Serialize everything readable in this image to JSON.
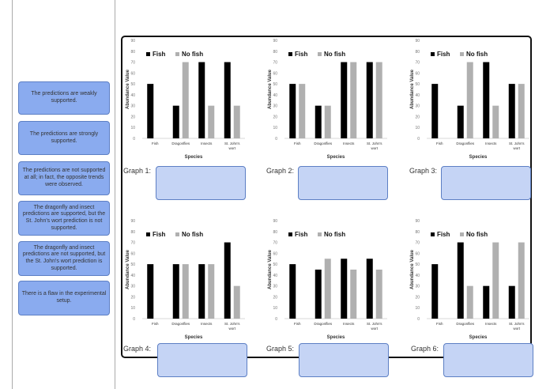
{
  "options": [
    {
      "text": "The predictions are weakly supported."
    },
    {
      "text": "The predictions are strongly supported."
    },
    {
      "text": "The predictions are not supported at all; in fact, the opposite trends were observed."
    },
    {
      "text": "The dragonfly and insect predictions are supported, but the St. John's wort prediction is not supported."
    },
    {
      "text": "The dragonfly and insect predictions are not supported, but the St. John's wort prediction is supported."
    },
    {
      "text": "There is a flaw in the experimental setup."
    }
  ],
  "graph_labels": [
    "Graph 1:",
    "Graph 2:",
    "Graph 3:",
    "Graph 4:",
    "Graph 5:",
    "Graph 6:"
  ],
  "chart_data": [
    {
      "type": "bar",
      "title": "Graph 1",
      "categories": [
        "Fish",
        "Dragonflies",
        "Insects",
        "St. John's wort"
      ],
      "series": [
        {
          "name": "Fish",
          "values": [
            50,
            30,
            70,
            70
          ]
        },
        {
          "name": "No fish",
          "values": [
            0,
            70,
            30,
            30
          ]
        }
      ],
      "xlabel": "Species",
      "ylabel": "Abundance Value",
      "ylim": [
        0,
        90
      ]
    },
    {
      "type": "bar",
      "title": "Graph 2",
      "categories": [
        "Fish",
        "Dragonflies",
        "Insects",
        "St. John's wort"
      ],
      "series": [
        {
          "name": "Fish",
          "values": [
            50,
            30,
            70,
            70
          ]
        },
        {
          "name": "No fish",
          "values": [
            50,
            30,
            70,
            70
          ]
        }
      ],
      "xlabel": "Species",
      "ylabel": "Abundance Value",
      "ylim": [
        0,
        90
      ]
    },
    {
      "type": "bar",
      "title": "Graph 3",
      "categories": [
        "Fish",
        "Dragonflies",
        "Insects",
        "St. John's wort"
      ],
      "series": [
        {
          "name": "Fish",
          "values": [
            50,
            30,
            70,
            50
          ]
        },
        {
          "name": "No fish",
          "values": [
            0,
            70,
            30,
            50
          ]
        }
      ],
      "xlabel": "Species",
      "ylabel": "Abundance Value",
      "ylim": [
        0,
        90
      ]
    },
    {
      "type": "bar",
      "title": "Graph 4",
      "categories": [
        "Fish",
        "Dragonflies",
        "Insects",
        "St. John's wort"
      ],
      "series": [
        {
          "name": "Fish",
          "values": [
            50,
            50,
            50,
            70
          ]
        },
        {
          "name": "No fish",
          "values": [
            0,
            50,
            50,
            30
          ]
        }
      ],
      "xlabel": "Species",
      "ylabel": "Abundance Value",
      "ylim": [
        0,
        90
      ]
    },
    {
      "type": "bar",
      "title": "Graph 5",
      "categories": [
        "Fish",
        "Dragonflies",
        "Insects",
        "St. John's wort"
      ],
      "series": [
        {
          "name": "Fish",
          "values": [
            50,
            45,
            55,
            55
          ]
        },
        {
          "name": "No fish",
          "values": [
            0,
            55,
            45,
            45
          ]
        }
      ],
      "xlabel": "Species",
      "ylabel": "Abundance Value",
      "ylim": [
        0,
        90
      ]
    },
    {
      "type": "bar",
      "title": "Graph 6",
      "categories": [
        "Fish",
        "Dragonflies",
        "Insects",
        "St. John's wort"
      ],
      "series": [
        {
          "name": "Fish",
          "values": [
            50,
            70,
            30,
            30
          ]
        },
        {
          "name": "No fish",
          "values": [
            0,
            30,
            70,
            70
          ]
        }
      ],
      "xlabel": "Species",
      "ylabel": "Abundance Value",
      "ylim": [
        0,
        90
      ]
    }
  ],
  "colors": {
    "fish": "#000000",
    "no_fish": "#b0b0b0",
    "option": "#8aabef",
    "drop": "#c5d4f5"
  }
}
